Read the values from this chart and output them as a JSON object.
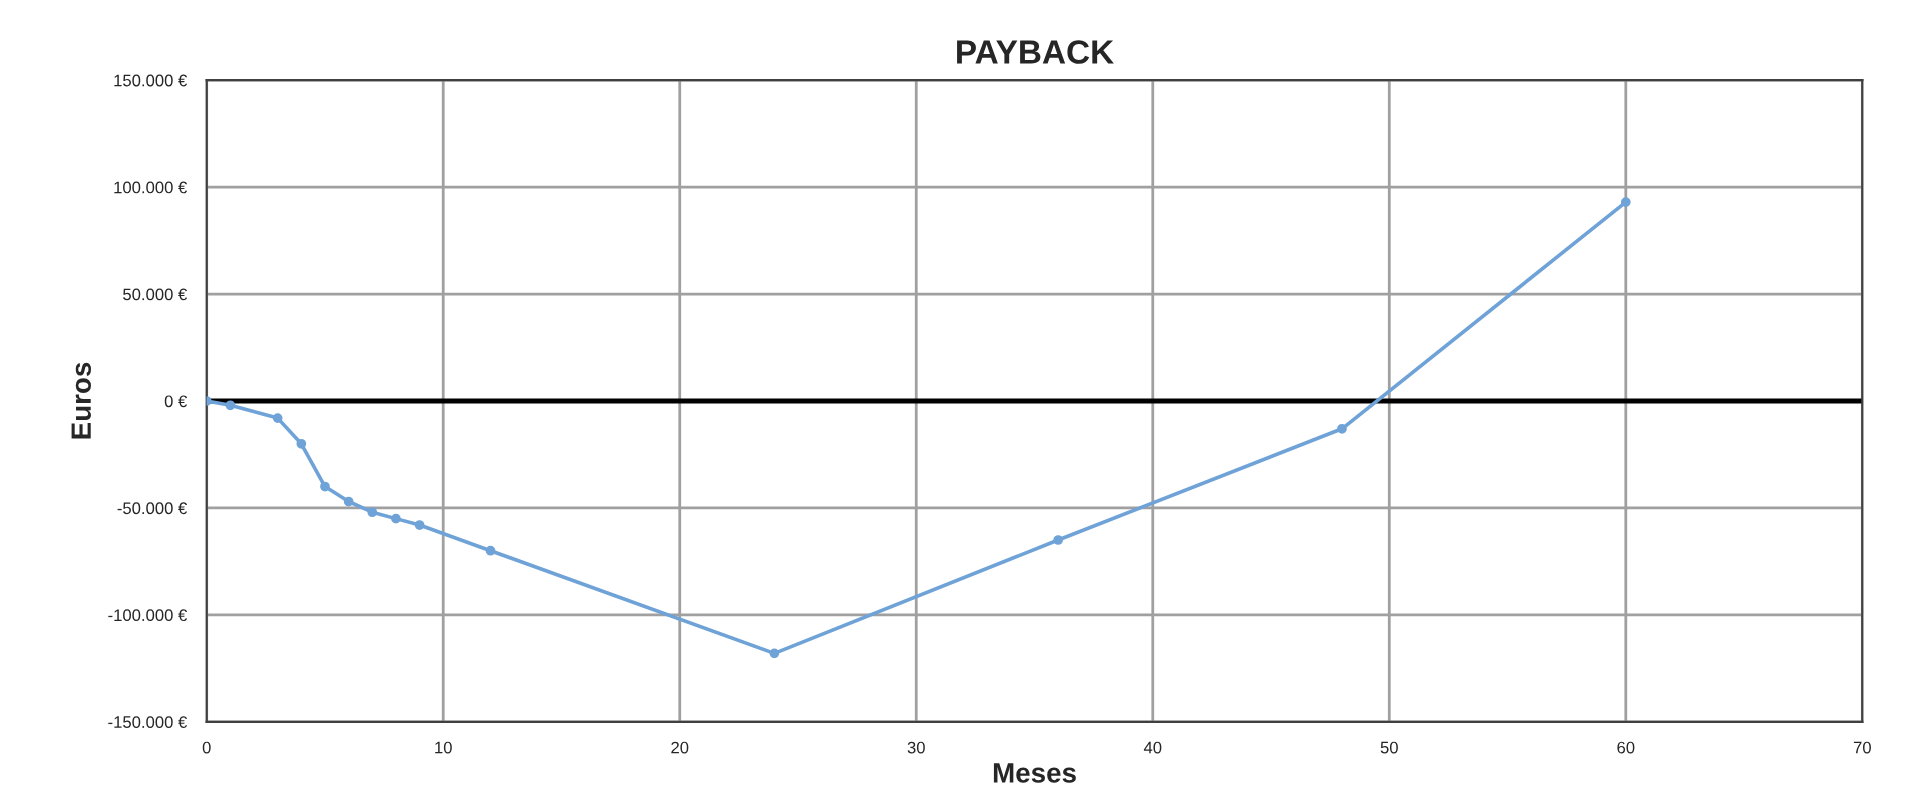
{
  "chart_data": {
    "type": "line",
    "title": "PAYBACK",
    "xlabel": "Meses",
    "ylabel": "Euros",
    "x": [
      0,
      1,
      3,
      4,
      5,
      6,
      7,
      8,
      9,
      12,
      24,
      36,
      48,
      60
    ],
    "series": [
      {
        "color": "#6fa3d8",
        "values": [
          0,
          -2000,
          -8000,
          -20000,
          -40000,
          -47000,
          -52000,
          -55000,
          -58000,
          -70000,
          -118000,
          -65000,
          -13000,
          93000
        ]
      }
    ],
    "xlim": [
      0,
      70
    ],
    "xticks": [
      0,
      10,
      20,
      30,
      40,
      50,
      60,
      70
    ],
    "ylim": [
      -150000,
      150000
    ],
    "yticks": [
      {
        "value": -150000,
        "label": "-150.000 €"
      },
      {
        "value": -100000,
        "label": "-100.000 €"
      },
      {
        "value": -50000,
        "label": "-50.000 €"
      },
      {
        "value": 0,
        "label": "0 €"
      },
      {
        "value": 50000,
        "label": "50.000 €"
      },
      {
        "value": 100000,
        "label": "100.000 €"
      },
      {
        "value": 150000,
        "label": "150.000 €"
      }
    ],
    "ref_lines": [
      {
        "axis": "y",
        "value": 0,
        "color": "#000000"
      }
    ],
    "grid": true,
    "marker": "circle",
    "line_style": "solid",
    "legend": false
  }
}
